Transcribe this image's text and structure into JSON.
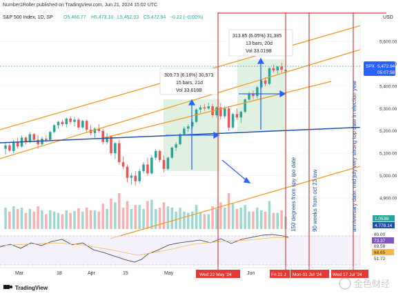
{
  "header": {
    "published_by": "Number1Roller published on TradingView.com, Jun 21, 2024 15:02 UTC",
    "symbol": "S&P 500 Index, 1D, SP",
    "open": "O5,466.77",
    "high": "H5,473.10",
    "low": "L5,452.03",
    "close": "C5,472.94",
    "change": "−0.22 (−0.00%)",
    "currency": "USD"
  },
  "price_tag": {
    "symbol": "SPX",
    "price": "5,472.94",
    "countdown": "05:07:58"
  },
  "volume_tags": {
    "volume": "1.053B",
    "volume_ma": "4.778.14"
  },
  "rsi_tags": [
    "80.00",
    "73.37",
    "69.58",
    "68.65",
    "51.72"
  ],
  "measure_boxes": [
    {
      "line1": "309.73 (6.18%) 30,973",
      "line2": "15 bars, 21d",
      "line3": "Vol 33.618B"
    },
    {
      "line1": "313.85 (6.05%) 31,385",
      "line2": "13 bars, 20d",
      "line3": "Vol 33.019B"
    }
  ],
  "annotations": [
    "150 degrees from spy ipo date",
    "90 weeks from oct 23 low",
    "anniversary date. mid july very strong top date in election year"
  ],
  "date_tags": [
    "Wed 22 May '24",
    "Fri 21 J",
    "Mon 01 Jul '24",
    "Wed 17 Jul '24"
  ],
  "logo": "TradingView",
  "watermark": "金色财经",
  "colors": {
    "up": "#26a69a",
    "down": "#ef5350",
    "accent": "#2962ff",
    "redline": "#e53935",
    "trend": "#f29a22",
    "blueline": "#1e4fa3",
    "price_tag": "#2962ff"
  },
  "chart_data": {
    "type": "candlestick",
    "x_tick_labels": [
      "Mar",
      "18",
      "Apr",
      "15",
      "May",
      "Jun"
    ],
    "y_tick_labels": [
      "5,600.00",
      "5,500.00",
      "5,400.00",
      "5,300.00",
      "5,200.00",
      "5,100.00",
      "5,000.00",
      "4,900.00"
    ],
    "ylim": [
      4860,
      5680
    ],
    "candles": [
      {
        "o": 5120,
        "h": 5150,
        "l": 5095,
        "c": 5135
      },
      {
        "o": 5135,
        "h": 5145,
        "l": 5105,
        "c": 5112
      },
      {
        "o": 5110,
        "h": 5160,
        "l": 5100,
        "c": 5150
      },
      {
        "o": 5150,
        "h": 5170,
        "l": 5120,
        "c": 5130
      },
      {
        "o": 5130,
        "h": 5180,
        "l": 5125,
        "c": 5170
      },
      {
        "o": 5170,
        "h": 5175,
        "l": 5140,
        "c": 5150
      },
      {
        "o": 5150,
        "h": 5195,
        "l": 5145,
        "c": 5185
      },
      {
        "o": 5185,
        "h": 5190,
        "l": 5150,
        "c": 5160
      },
      {
        "o": 5160,
        "h": 5180,
        "l": 5120,
        "c": 5140
      },
      {
        "o": 5140,
        "h": 5175,
        "l": 5130,
        "c": 5165
      },
      {
        "o": 5165,
        "h": 5180,
        "l": 5150,
        "c": 5160
      },
      {
        "o": 5160,
        "h": 5200,
        "l": 5155,
        "c": 5195
      },
      {
        "o": 5195,
        "h": 5230,
        "l": 5190,
        "c": 5225
      },
      {
        "o": 5225,
        "h": 5245,
        "l": 5210,
        "c": 5240
      },
      {
        "o": 5240,
        "h": 5250,
        "l": 5220,
        "c": 5230
      },
      {
        "o": 5230,
        "h": 5260,
        "l": 5215,
        "c": 5255
      },
      {
        "o": 5255,
        "h": 5265,
        "l": 5230,
        "c": 5240
      },
      {
        "o": 5240,
        "h": 5262,
        "l": 5220,
        "c": 5250
      },
      {
        "o": 5250,
        "h": 5258,
        "l": 5205,
        "c": 5215
      },
      {
        "o": 5215,
        "h": 5250,
        "l": 5210,
        "c": 5245
      },
      {
        "o": 5245,
        "h": 5250,
        "l": 5195,
        "c": 5205
      },
      {
        "o": 5205,
        "h": 5225,
        "l": 5180,
        "c": 5190
      },
      {
        "o": 5190,
        "h": 5215,
        "l": 5170,
        "c": 5210
      },
      {
        "o": 5210,
        "h": 5230,
        "l": 5190,
        "c": 5200
      },
      {
        "o": 5200,
        "h": 5210,
        "l": 5140,
        "c": 5150
      },
      {
        "o": 5150,
        "h": 5190,
        "l": 5140,
        "c": 5175
      },
      {
        "o": 5175,
        "h": 5180,
        "l": 5090,
        "c": 5100
      },
      {
        "o": 5100,
        "h": 5150,
        "l": 5075,
        "c": 5145
      },
      {
        "o": 5145,
        "h": 5160,
        "l": 5050,
        "c": 5060
      },
      {
        "o": 5060,
        "h": 5085,
        "l": 5030,
        "c": 5040
      },
      {
        "o": 5040,
        "h": 5050,
        "l": 4970,
        "c": 4990
      },
      {
        "o": 4990,
        "h": 5010,
        "l": 4960,
        "c": 5000
      },
      {
        "o": 5000,
        "h": 5020,
        "l": 4955,
        "c": 4975
      },
      {
        "o": 4975,
        "h": 5030,
        "l": 4965,
        "c": 5020
      },
      {
        "o": 5020,
        "h": 5060,
        "l": 5010,
        "c": 5050
      },
      {
        "o": 5050,
        "h": 5080,
        "l": 5000,
        "c": 5010
      },
      {
        "o": 5010,
        "h": 5090,
        "l": 5005,
        "c": 5080
      },
      {
        "o": 5080,
        "h": 5120,
        "l": 5070,
        "c": 5110
      },
      {
        "o": 5110,
        "h": 5115,
        "l": 5060,
        "c": 5070
      },
      {
        "o": 5070,
        "h": 5090,
        "l": 5015,
        "c": 5030
      },
      {
        "o": 5030,
        "h": 5085,
        "l": 5025,
        "c": 5080
      },
      {
        "o": 5080,
        "h": 5130,
        "l": 5075,
        "c": 5125
      },
      {
        "o": 5125,
        "h": 5150,
        "l": 5110,
        "c": 5140
      },
      {
        "o": 5140,
        "h": 5190,
        "l": 5135,
        "c": 5185
      },
      {
        "o": 5185,
        "h": 5220,
        "l": 5180,
        "c": 5210
      },
      {
        "o": 5210,
        "h": 5230,
        "l": 5195,
        "c": 5220
      },
      {
        "o": 5220,
        "h": 5250,
        "l": 5210,
        "c": 5240
      },
      {
        "o": 5240,
        "h": 5300,
        "l": 5235,
        "c": 5295
      },
      {
        "o": 5295,
        "h": 5315,
        "l": 5280,
        "c": 5305
      },
      {
        "o": 5305,
        "h": 5320,
        "l": 5290,
        "c": 5300
      },
      {
        "o": 5300,
        "h": 5325,
        "l": 5295,
        "c": 5310
      },
      {
        "o": 5310,
        "h": 5320,
        "l": 5260,
        "c": 5270
      },
      {
        "o": 5270,
        "h": 5310,
        "l": 5260,
        "c": 5305
      },
      {
        "o": 5305,
        "h": 5325,
        "l": 5250,
        "c": 5265
      },
      {
        "o": 5265,
        "h": 5310,
        "l": 5255,
        "c": 5300
      },
      {
        "o": 5300,
        "h": 5310,
        "l": 5200,
        "c": 5215
      },
      {
        "o": 5215,
        "h": 5280,
        "l": 5210,
        "c": 5275
      },
      {
        "o": 5275,
        "h": 5300,
        "l": 5250,
        "c": 5260
      },
      {
        "o": 5260,
        "h": 5290,
        "l": 5235,
        "c": 5285
      },
      {
        "o": 5285,
        "h": 5345,
        "l": 5280,
        "c": 5340
      },
      {
        "o": 5340,
        "h": 5375,
        "l": 5335,
        "c": 5365
      },
      {
        "o": 5365,
        "h": 5380,
        "l": 5340,
        "c": 5355
      },
      {
        "o": 5355,
        "h": 5400,
        "l": 5345,
        "c": 5395
      },
      {
        "o": 5395,
        "h": 5430,
        "l": 5385,
        "c": 5425
      },
      {
        "o": 5425,
        "h": 5440,
        "l": 5400,
        "c": 5410
      },
      {
        "o": 5410,
        "h": 5485,
        "l": 5405,
        "c": 5480
      },
      {
        "o": 5480,
        "h": 5495,
        "l": 5460,
        "c": 5470
      },
      {
        "o": 5470,
        "h": 5490,
        "l": 5455,
        "c": 5487
      },
      {
        "o": 5487,
        "h": 5505,
        "l": 5460,
        "c": 5473
      },
      {
        "o": 5466.77,
        "h": 5473.1,
        "l": 5452.03,
        "c": 5472.94
      }
    ]
  }
}
